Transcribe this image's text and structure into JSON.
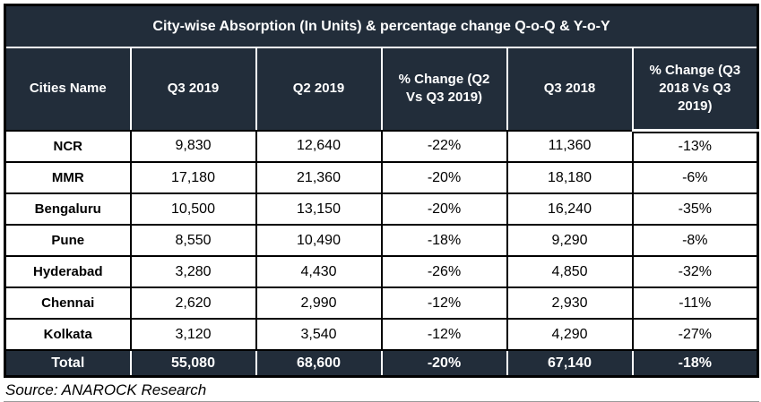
{
  "chart_data": {
    "type": "table",
    "title": "City-wise Absorption (In Units) & percentage change Q-o-Q & Y-o-Y",
    "columns": [
      "Cities Name",
      "Q3 2019",
      "Q2 2019",
      "% Change (Q2 Vs Q3 2019)",
      "Q3 2018",
      "% Change (Q3 2018 Vs Q3 2019)"
    ],
    "rows": [
      {
        "cells": [
          "NCR",
          "9,830",
          "12,640",
          "-22%",
          "11,360",
          "-13%"
        ]
      },
      {
        "cells": [
          "MMR",
          "17,180",
          "21,360",
          "-20%",
          "18,180",
          "-6%"
        ]
      },
      {
        "cells": [
          "Bengaluru",
          "10,500",
          "13,150",
          "-20%",
          "16,240",
          "-35%"
        ]
      },
      {
        "cells": [
          "Pune",
          "8,550",
          "10,490",
          "-18%",
          "9,290",
          "-8%"
        ]
      },
      {
        "cells": [
          "Hyderabad",
          "3,280",
          "4,430",
          "-26%",
          "4,850",
          "-32%"
        ]
      },
      {
        "cells": [
          "Chennai",
          "2,620",
          "2,990",
          "-12%",
          "2,930",
          "-11%"
        ]
      },
      {
        "cells": [
          "Kolkata",
          "3,120",
          "3,540",
          "-12%",
          "4,290",
          "-27%"
        ]
      }
    ],
    "total": {
      "cells": [
        "Total",
        "55,080",
        "68,600",
        "-20%",
        "67,140",
        "-18%"
      ]
    },
    "source": "Source: ANAROCK Research",
    "layout": {
      "grid": true,
      "header_position": "top"
    }
  },
  "colors": {
    "header_bg": "#222D3A",
    "grid_line": "#000000",
    "header_divider": "#FFFFFF",
    "header_text": "#FFFFFF",
    "body_text": "#000000"
  }
}
